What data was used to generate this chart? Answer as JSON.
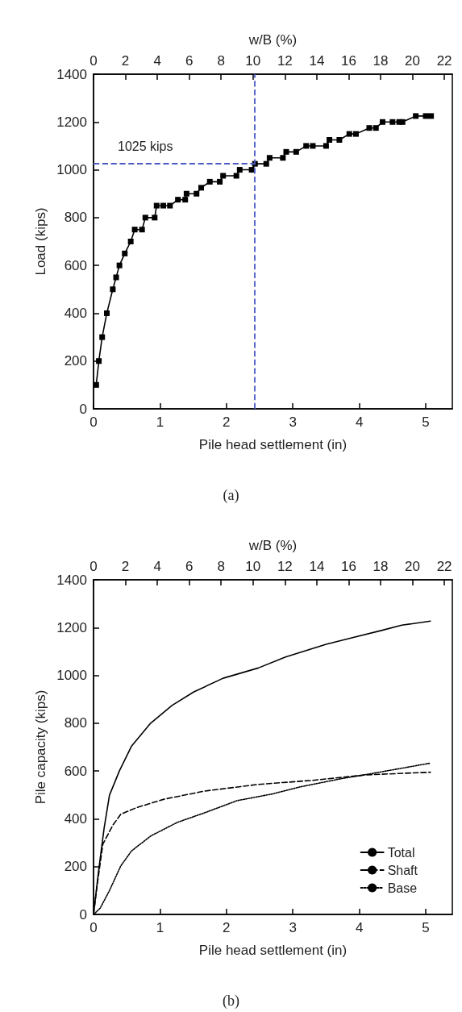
{
  "chart_data": [
    {
      "type": "line",
      "xlabel": "Pile head settlement (in)",
      "ylabel": "Load (kips)",
      "x2label": "w/B (%)",
      "xlim": [
        0,
        5.4
      ],
      "xticks": [
        0,
        1,
        2,
        3,
        4,
        5
      ],
      "x2lim": [
        0,
        22.5
      ],
      "x2ticks": [
        0,
        2,
        4,
        6,
        8,
        10,
        12,
        14,
        16,
        18,
        20,
        22
      ],
      "ylim": [
        0,
        1400
      ],
      "yticks": [
        0,
        200,
        400,
        600,
        800,
        1000,
        1200,
        1400
      ],
      "marker": "square",
      "line_style": "solid",
      "series": [
        {
          "color": "#000000",
          "x": [
            0.04,
            0.08,
            0.13,
            0.2,
            0.29,
            0.34,
            0.39,
            0.47,
            0.56,
            0.62,
            0.73,
            0.78,
            0.92,
            0.95,
            1.05,
            1.15,
            1.27,
            1.38,
            1.4,
            1.55,
            1.62,
            1.75,
            1.9,
            1.95,
            2.15,
            2.2,
            2.38,
            2.43,
            2.6,
            2.65,
            2.85,
            2.9,
            3.05,
            3.2,
            3.3,
            3.5,
            3.55,
            3.7,
            3.85,
            3.95,
            4.15,
            4.25,
            4.35,
            4.5,
            4.6,
            4.65,
            4.85,
            5.0,
            5.08
          ],
          "values": [
            100,
            200,
            300,
            400,
            500,
            550,
            600,
            650,
            700,
            750,
            750,
            800,
            800,
            850,
            850,
            850,
            875,
            875,
            900,
            900,
            925,
            950,
            950,
            975,
            975,
            1000,
            1000,
            1025,
            1025,
            1050,
            1050,
            1075,
            1075,
            1100,
            1100,
            1100,
            1125,
            1125,
            1150,
            1150,
            1175,
            1175,
            1200,
            1200,
            1200,
            1200,
            1225,
            1225,
            1225
          ]
        }
      ],
      "ref_lines": [
        {
          "axis": "y",
          "value": 1025,
          "label": "1025 kips",
          "color": "#4a5bc4",
          "line_style": "dashed"
        },
        {
          "axis": "x",
          "value": 2.42,
          "color": "#4a5bc4",
          "line_style": "dashed"
        }
      ],
      "annotations": [
        "(a)"
      ]
    },
    {
      "type": "line",
      "xlabel": "Pile head settlement (in)",
      "ylabel": "Pile capacity (kips)",
      "x2label": "w/B (%)",
      "xlim": [
        0,
        5.4
      ],
      "xticks": [
        0,
        1,
        2,
        3,
        4,
        5
      ],
      "x2lim": [
        0,
        22.5
      ],
      "x2ticks": [
        0,
        2,
        4,
        6,
        8,
        10,
        12,
        14,
        16,
        18,
        20,
        22
      ],
      "ylim": [
        0,
        1400
      ],
      "yticks": [
        0,
        200,
        400,
        600,
        800,
        1000,
        1200,
        1400
      ],
      "marker": "none",
      "legend": "bottom right",
      "series": [
        {
          "name": "Total",
          "color": "#000000",
          "line_style": "solid",
          "x": [
            0,
            0.08,
            0.16,
            0.24,
            0.39,
            0.57,
            0.86,
            1.18,
            1.51,
            1.95,
            2.48,
            2.89,
            3.5,
            3.91,
            4.32,
            4.64,
            5.07
          ],
          "values": [
            0,
            191,
            362,
            499,
            601,
            703,
            800,
            874,
            931,
            988,
            1031,
            1077,
            1130,
            1159,
            1187,
            1210,
            1227
          ]
        },
        {
          "name": "Shaft",
          "color": "#000000",
          "line_style": "dashed",
          "x": [
            0,
            0.06,
            0.14,
            0.29,
            0.41,
            0.65,
            1.06,
            1.67,
            2.48,
            3.3,
            4.11,
            5.07
          ],
          "values": [
            0,
            134,
            294,
            373,
            419,
            447,
            482,
            516,
            544,
            561,
            584,
            595
          ]
        },
        {
          "name": "Base",
          "color": "#000000",
          "line_style": "dotted",
          "x": [
            0,
            0.1,
            0.24,
            0.41,
            0.57,
            0.86,
            1.26,
            1.67,
            2.16,
            2.69,
            3.1,
            3.71,
            4.2,
            5.07
          ],
          "values": [
            0,
            26,
            100,
            203,
            265,
            328,
            385,
            425,
            476,
            504,
            533,
            567,
            590,
            633
          ]
        }
      ],
      "annotations": [
        "(b)"
      ]
    }
  ]
}
